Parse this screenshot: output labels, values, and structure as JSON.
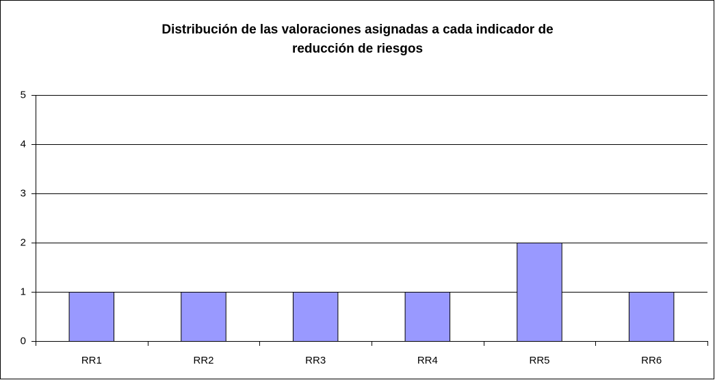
{
  "chart_data": {
    "type": "bar",
    "title": "Distribución de las valoraciones asignadas a cada indicador de reducción de riesgos",
    "categories": [
      "RR1",
      "RR2",
      "RR3",
      "RR4",
      "RR5",
      "RR6"
    ],
    "values": [
      1,
      1,
      1,
      1,
      2,
      1
    ],
    "color": "#9999ff",
    "ylim": [
      0,
      5
    ],
    "yticks": [
      0,
      1,
      2,
      3,
      4,
      5
    ],
    "grid": true
  }
}
